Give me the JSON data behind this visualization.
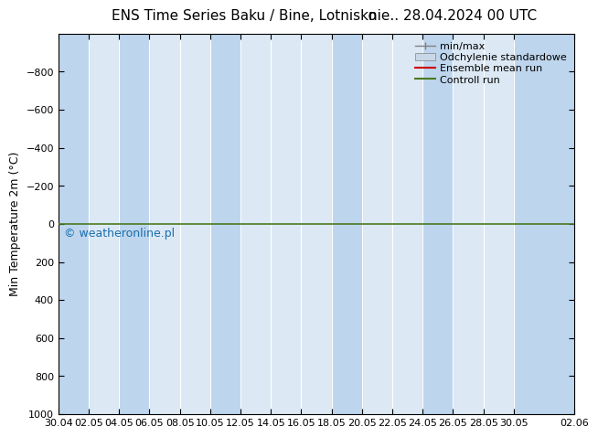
{
  "title": "ENS Time Series Baku / Bine, Lotnisko",
  "title_right": "nie.. 28.04.2024 00 UTC",
  "ylabel": "Min Temperature 2m (°C)",
  "ylim_top": -1000,
  "ylim_bottom": 1000,
  "yticks": [
    -800,
    -600,
    -400,
    -200,
    0,
    200,
    400,
    600,
    800,
    1000
  ],
  "x_start": 0,
  "x_end": 34,
  "xtick_labels": [
    "30.04",
    "02.05",
    "04.05",
    "06.05",
    "08.05",
    "10.05",
    "12.05",
    "14.05",
    "16.05",
    "18.05",
    "20.05",
    "22.05",
    "24.05",
    "26.05",
    "28.05",
    "30.05",
    "02.06"
  ],
  "xtick_positions": [
    0,
    2,
    4,
    6,
    8,
    10,
    12,
    14,
    16,
    18,
    20,
    22,
    24,
    26,
    28,
    30,
    34
  ],
  "bg_color": "#ffffff",
  "plot_bg_color": "#dce9f5",
  "shade_color": "#bdd5ed",
  "shade_positions": [
    0,
    4,
    10,
    18,
    24,
    30
  ],
  "shade_widths": [
    2,
    2,
    2,
    2,
    2,
    4
  ],
  "control_run_value": 0,
  "control_run_color": "#4a7a20",
  "ensemble_mean_color": "#cc0000",
  "watermark": "© weatheronline.pl",
  "watermark_color": "#1a6fad",
  "legend_items": [
    "min/max",
    "Odchylenie standardowe",
    "Ensemble mean run",
    "Controll run"
  ],
  "minmax_color": "#808080",
  "std_color": "#c8d8e8",
  "grid_color": "#ffffff",
  "spine_color": "#000000",
  "font_size_title": 11,
  "font_size_axis": 9,
  "font_size_tick": 8,
  "font_size_legend": 8,
  "font_size_watermark": 9
}
